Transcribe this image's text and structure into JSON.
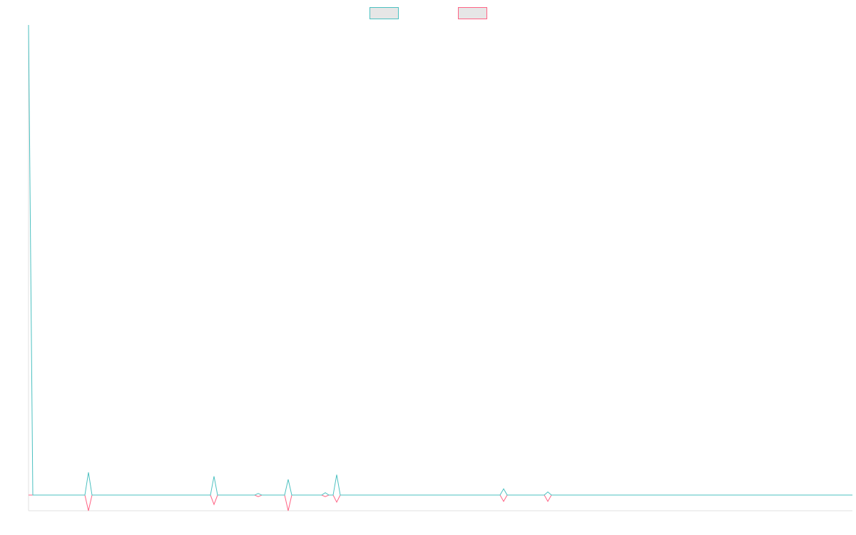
{
  "chart_data": {
    "type": "line",
    "x": [
      0,
      6,
      79,
      84,
      89,
      255,
      260,
      265,
      317,
      322,
      327,
      359,
      364,
      369,
      411,
      416,
      421,
      427,
      432,
      437,
      661,
      666,
      671,
      723,
      728,
      733,
      1155
    ],
    "xlim": [
      0,
      1155
    ],
    "ylim": [
      -1,
      30
    ],
    "grid": false,
    "legend": "top",
    "series": [
      {
        "color": "#4bc0c0",
        "values": [
          30,
          0,
          0,
          1.45,
          0,
          0,
          1.2,
          0,
          0,
          0.1,
          0,
          0,
          1,
          0,
          0,
          0.15,
          0,
          0,
          1.3,
          0,
          0,
          0.4,
          0,
          0,
          0.2,
          0,
          0
        ]
      },
      {
        "color": "#ff6384",
        "values": [
          0,
          0,
          0,
          -1,
          0,
          0,
          -0.6,
          0,
          0,
          -0.1,
          0,
          0,
          -1,
          0,
          0,
          -0.1,
          0,
          0,
          -0.45,
          0,
          0,
          -0.4,
          0,
          0,
          -0.4,
          0,
          0
        ]
      }
    ]
  }
}
